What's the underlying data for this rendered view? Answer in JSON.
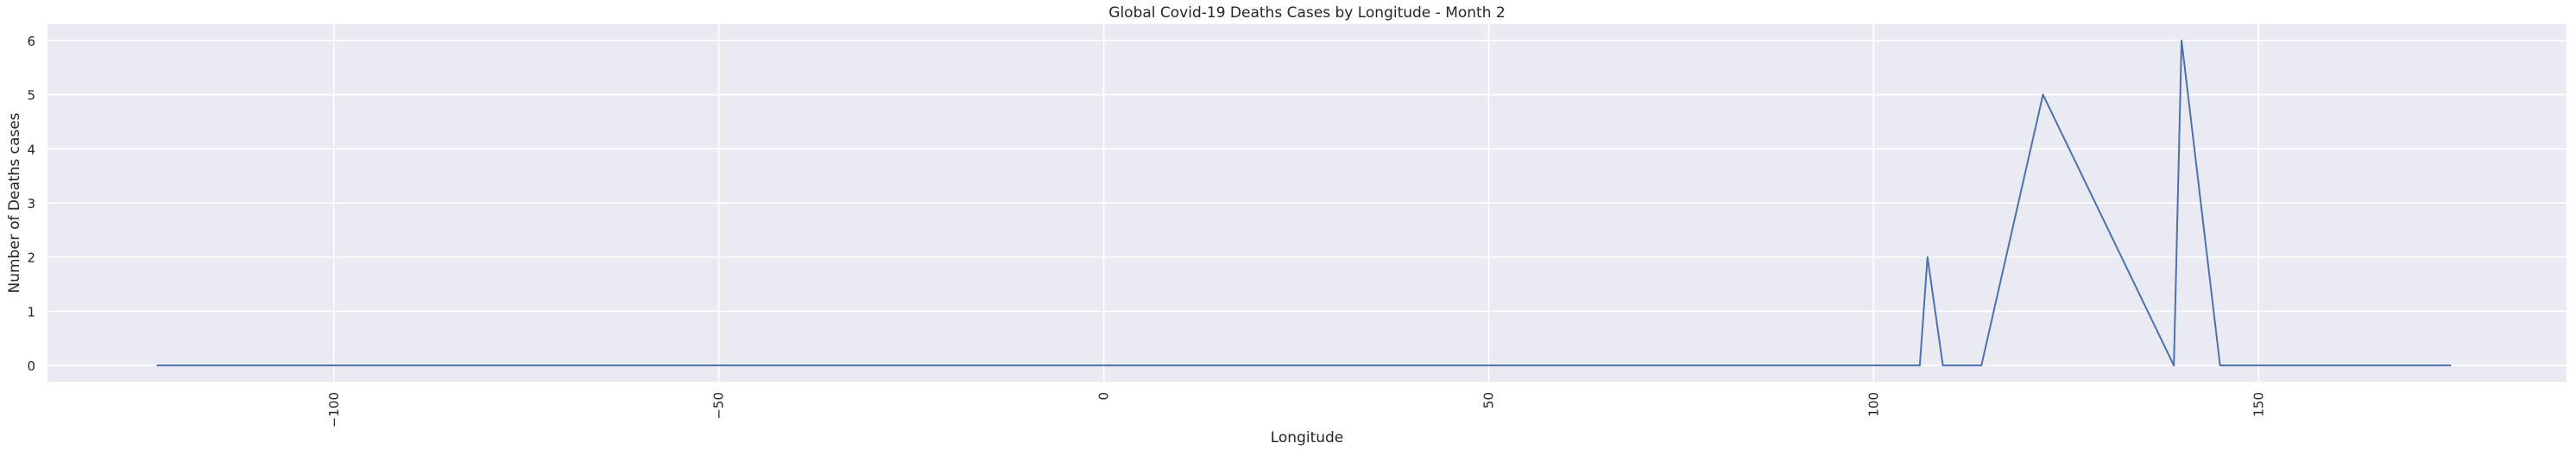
{
  "chart_data": {
    "type": "line",
    "title": "Global Covid-19 Deaths Cases by Longitude - Month 2",
    "xlabel": "Longitude",
    "ylabel": "Number of Deaths cases",
    "xlim": [
      -137.2,
      190
    ],
    "ylim": [
      -0.3,
      6.3
    ],
    "x_ticks": [
      -100,
      -50,
      0,
      50,
      100,
      150
    ],
    "x_tick_labels": [
      "−100",
      "−50",
      "0",
      "50",
      "100",
      "150"
    ],
    "y_ticks": [
      0,
      1,
      2,
      3,
      4,
      5,
      6
    ],
    "y_tick_labels": [
      "0",
      "1",
      "2",
      "3",
      "4",
      "5",
      "6"
    ],
    "grid": true,
    "series": [
      {
        "color": "#4c72b0",
        "x": [
          -123,
          106,
          107,
          109,
          114,
          122,
          139,
          140,
          145,
          175
        ],
        "y": [
          0,
          0,
          2,
          0,
          0,
          5,
          0,
          6,
          0,
          0
        ]
      }
    ]
  }
}
